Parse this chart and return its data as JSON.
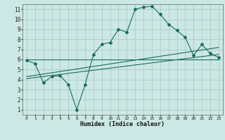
{
  "xlabel": "Humidex (Indice chaleur)",
  "bg_color": "#cce8e4",
  "grid_color": "#a8cdc8",
  "line_color": "#1a6b60",
  "xlim": [
    -0.5,
    23.5
  ],
  "ylim": [
    0.5,
    11.5
  ],
  "xticks": [
    0,
    1,
    2,
    3,
    4,
    5,
    6,
    7,
    8,
    9,
    10,
    11,
    12,
    13,
    14,
    15,
    16,
    17,
    18,
    19,
    20,
    21,
    22,
    23
  ],
  "yticks": [
    1,
    2,
    3,
    4,
    5,
    6,
    7,
    8,
    9,
    10,
    11
  ],
  "line1_x": [
    0,
    1,
    2,
    3,
    4,
    5,
    6,
    7,
    8,
    9,
    10,
    11,
    12,
    13,
    14,
    15,
    16,
    17,
    18,
    19,
    20,
    21,
    22,
    23
  ],
  "line1_y": [
    5.9,
    5.6,
    3.7,
    4.3,
    4.4,
    3.5,
    1.0,
    3.5,
    6.5,
    7.5,
    7.7,
    9.0,
    8.7,
    11.0,
    11.2,
    11.3,
    10.5,
    9.5,
    8.9,
    8.2,
    6.4,
    7.5,
    6.6,
    6.2
  ],
  "line2_x": [
    0,
    23
  ],
  "line2_y": [
    6.0,
    6.0
  ],
  "line3_x": [
    0,
    23
  ],
  "line3_y": [
    4.3,
    7.2
  ],
  "line4_x": [
    0,
    23
  ],
  "line4_y": [
    4.1,
    6.5
  ]
}
